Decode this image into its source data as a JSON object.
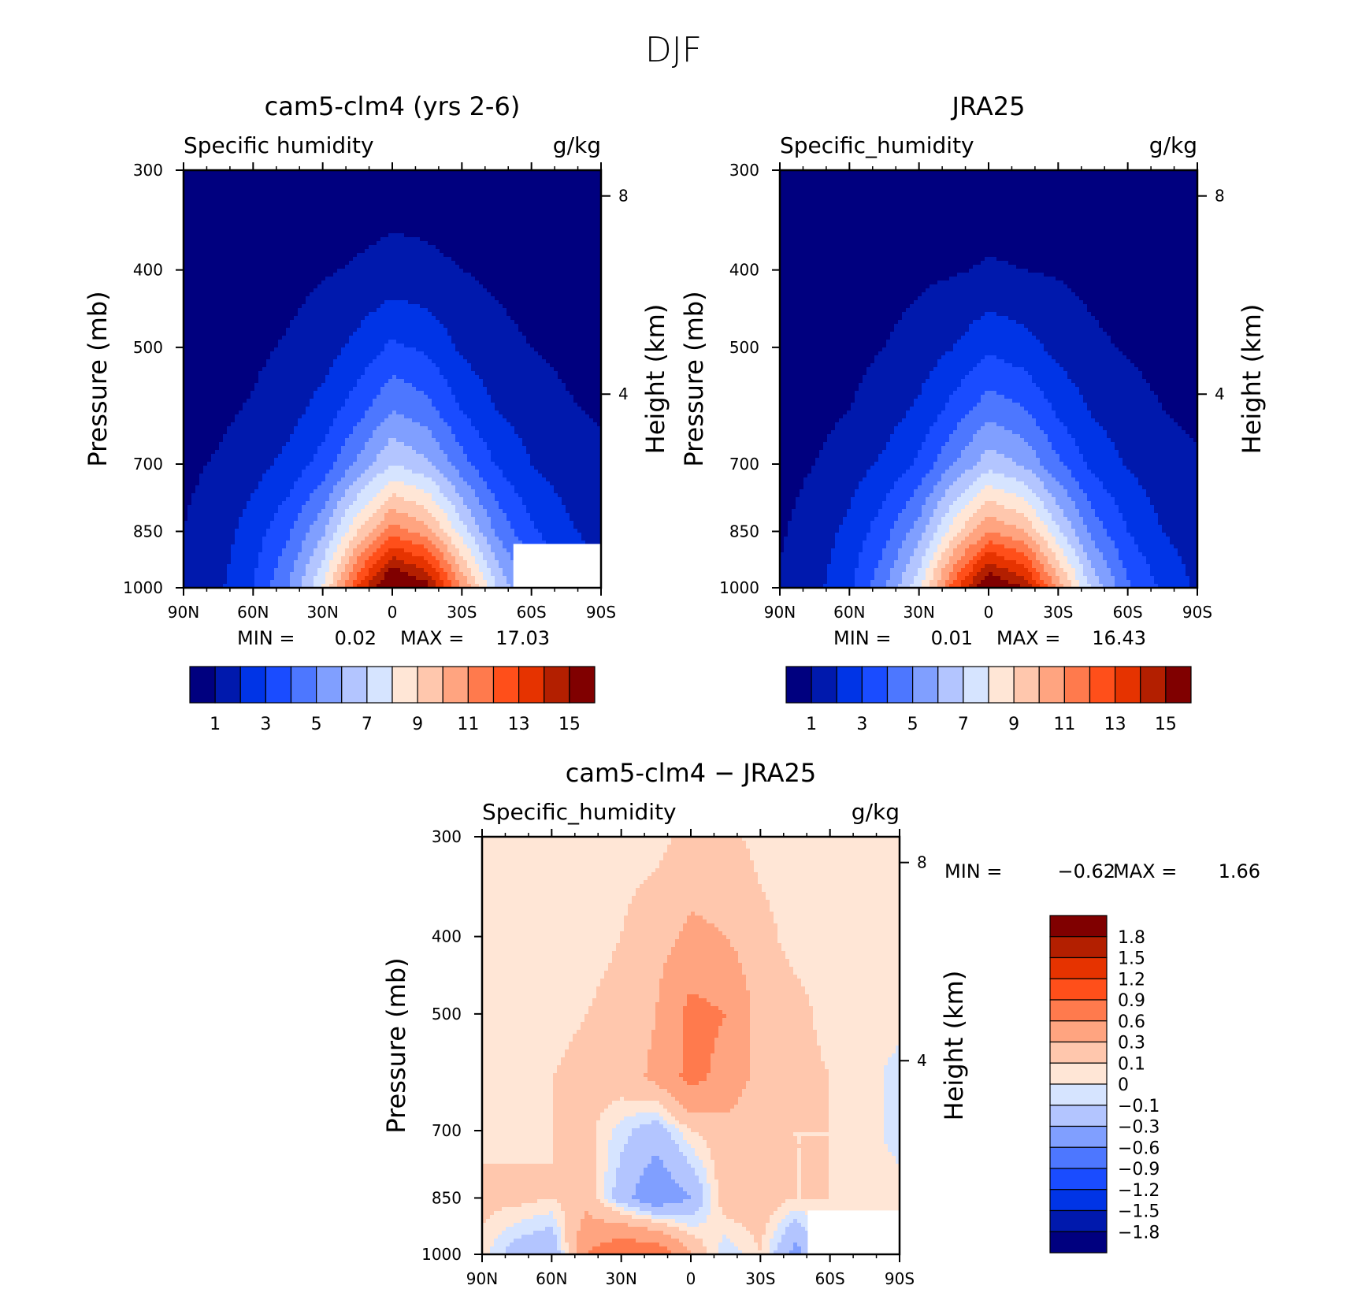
{
  "figure": {
    "title": "DJF"
  },
  "colors": {
    "abs_levels": [
      "#00007f",
      "#0019ad",
      "#0034e6",
      "#1a4cff",
      "#4d77ff",
      "#809fff",
      "#b3c5ff",
      "#d6e4ff",
      "#ffe6d6",
      "#ffc7ad",
      "#ffa480",
      "#ff7a4d",
      "#ff4f1a",
      "#e63300",
      "#b31f00",
      "#800000"
    ],
    "diff_levels": [
      "#00007f",
      "#0019ad",
      "#0034e6",
      "#1a4cff",
      "#4d77ff",
      "#809fff",
      "#b3c5ff",
      "#d6e4ff",
      "#ffe6d6",
      "#ffc7ad",
      "#ffa480",
      "#ff7a4d",
      "#ff4f1a",
      "#e63300",
      "#b31f00",
      "#800000"
    ]
  },
  "chart_data": [
    {
      "type": "contour",
      "title": "cam5-clm4 (yrs 2-6)",
      "left_label": "Specific humidity",
      "right_label": "g/kg",
      "ylabel": "Pressure (mb)",
      "y2label": "Height (km)",
      "x_ticks": [
        "90N",
        "60N",
        "30N",
        "0",
        "30S",
        "60S",
        "90S"
      ],
      "y_ticks": [
        "300",
        "400",
        "500",
        "700",
        "850",
        "1000"
      ],
      "y2_ticks": [
        "8",
        "4"
      ],
      "x": [
        90,
        75,
        60,
        45,
        30,
        15,
        0,
        -15,
        -30,
        -45,
        -60,
        -75,
        -90
      ],
      "min_label": "MIN =",
      "min_value": "0.02",
      "max_label": "MAX =",
      "max_value": "17.03",
      "colorbar_labels": [
        "1",
        "3",
        "5",
        "7",
        "9",
        "11",
        "13",
        "15"
      ],
      "field": [
        {
          "p": 300,
          "q": [
            0.3,
            0.3,
            0.3,
            0.3,
            0.4,
            0.4,
            0.5,
            0.5,
            0.4,
            0.3,
            0.3,
            0.2,
            0.2
          ]
        },
        {
          "p": 400,
          "q": [
            0.3,
            0.4,
            0.5,
            0.7,
            0.9,
            1.1,
            1.3,
            1.2,
            1.0,
            0.8,
            0.6,
            0.4,
            0.3
          ]
        },
        {
          "p": 500,
          "q": [
            0.5,
            0.6,
            0.8,
            1.1,
            1.5,
            2.3,
            3.2,
            2.8,
            1.8,
            1.3,
            1.0,
            0.8,
            0.6
          ]
        },
        {
          "p": 600,
          "q": [
            0.6,
            0.8,
            1.1,
            1.6,
            2.4,
            3.6,
            5.0,
            4.4,
            3.0,
            2.0,
            1.5,
            1.1,
            0.9
          ]
        },
        {
          "p": 700,
          "q": [
            0.8,
            1.1,
            1.6,
            2.3,
            3.4,
            5.2,
            7.0,
            6.2,
            4.4,
            2.9,
            2.0,
            1.5,
            1.2
          ]
        },
        {
          "p": 850,
          "q": [
            1.0,
            1.5,
            2.5,
            3.8,
            5.8,
            9.0,
            11.5,
            10.5,
            7.5,
            4.8,
            3.2,
            2.2,
            1.6
          ]
        },
        {
          "p": 1000,
          "q": [
            1.2,
            1.8,
            3.0,
            5.0,
            8.0,
            13.0,
            17.0,
            15.5,
            11.0,
            7.0,
            4.5,
            3.0,
            2.0
          ]
        }
      ]
    },
    {
      "type": "contour",
      "title": "JRA25",
      "left_label": "Specific_humidity",
      "right_label": "g/kg",
      "ylabel": "Pressure (mb)",
      "y2label": "Height (km)",
      "x_ticks": [
        "90N",
        "60N",
        "30N",
        "0",
        "30S",
        "60S",
        "90S"
      ],
      "y_ticks": [
        "300",
        "400",
        "500",
        "700",
        "850",
        "1000"
      ],
      "y2_ticks": [
        "8",
        "4"
      ],
      "x": [
        90,
        75,
        60,
        45,
        30,
        15,
        0,
        -15,
        -30,
        -45,
        -60,
        -75,
        -90
      ],
      "min_label": "MIN =",
      "min_value": "0.01",
      "max_label": "MAX =",
      "max_value": "16.43",
      "colorbar_labels": [
        "1",
        "3",
        "5",
        "7",
        "9",
        "11",
        "13",
        "15"
      ],
      "field": [
        {
          "p": 300,
          "q": [
            0.2,
            0.2,
            0.2,
            0.3,
            0.3,
            0.4,
            0.4,
            0.4,
            0.3,
            0.3,
            0.2,
            0.2,
            0.2
          ]
        },
        {
          "p": 400,
          "q": [
            0.3,
            0.3,
            0.4,
            0.6,
            0.8,
            0.9,
            1.1,
            1.0,
            0.9,
            0.7,
            0.5,
            0.4,
            0.3
          ]
        },
        {
          "p": 500,
          "q": [
            0.4,
            0.5,
            0.7,
            1.0,
            1.4,
            2.0,
            2.8,
            2.4,
            1.7,
            1.2,
            0.9,
            0.7,
            0.5
          ]
        },
        {
          "p": 600,
          "q": [
            0.5,
            0.7,
            1.0,
            1.5,
            2.2,
            3.4,
            4.6,
            4.1,
            2.8,
            1.9,
            1.4,
            1.0,
            0.8
          ]
        },
        {
          "p": 700,
          "q": [
            0.7,
            1.0,
            1.5,
            2.2,
            3.2,
            5.0,
            6.6,
            5.9,
            4.2,
            2.7,
            1.9,
            1.4,
            1.1
          ]
        },
        {
          "p": 850,
          "q": [
            0.9,
            1.4,
            2.3,
            3.6,
            5.5,
            8.6,
            11.0,
            10.1,
            7.2,
            4.6,
            3.0,
            2.0,
            1.5
          ]
        },
        {
          "p": 1000,
          "q": [
            1.1,
            1.7,
            2.8,
            4.8,
            7.8,
            12.5,
            16.4,
            15.0,
            10.6,
            6.7,
            4.2,
            2.8,
            1.8
          ]
        }
      ]
    },
    {
      "type": "contour",
      "title": "cam5-clm4 − JRA25",
      "left_label": "Specific_humidity",
      "right_label": "g/kg",
      "ylabel": "Pressure (mb)",
      "y2label": "Height (km)",
      "x_ticks": [
        "90N",
        "60N",
        "30N",
        "0",
        "30S",
        "60S",
        "90S"
      ],
      "y_ticks": [
        "300",
        "400",
        "500",
        "700",
        "850",
        "1000"
      ],
      "y2_ticks": [
        "8",
        "4"
      ],
      "x": [
        90,
        75,
        60,
        45,
        30,
        15,
        0,
        -15,
        -30,
        -45,
        -60,
        -75,
        -90
      ],
      "min_label": "MIN =",
      "min_value": "−0.62",
      "max_label": "MAX =",
      "max_value": "1.66",
      "colorbar_labels": [
        "1.8",
        "1.5",
        "1.2",
        "0.9",
        "0.6",
        "0.3",
        "0.1",
        "0",
        "−0.1",
        "−0.3",
        "−0.6",
        "−0.9",
        "−1.2",
        "−1.5",
        "−1.8"
      ],
      "field": [
        {
          "p": 300,
          "q": [
            0.05,
            0.05,
            0.05,
            0.05,
            0.05,
            0.05,
            0.15,
            0.15,
            0.05,
            0.05,
            0.05,
            0.05,
            0.05
          ]
        },
        {
          "p": 400,
          "q": [
            0.05,
            0.05,
            0.05,
            0.05,
            0.1,
            0.2,
            0.35,
            0.3,
            0.15,
            0.05,
            0.05,
            0.05,
            0.05
          ]
        },
        {
          "p": 500,
          "q": [
            0.05,
            0.05,
            0.05,
            0.1,
            0.15,
            0.3,
            0.7,
            0.6,
            0.2,
            0.15,
            0.05,
            0.05,
            0.05
          ]
        },
        {
          "p": 600,
          "q": [
            0.05,
            0.05,
            0.1,
            0.15,
            0.2,
            0.35,
            0.7,
            0.5,
            0.2,
            0.15,
            0.1,
            0.05,
            -0.05
          ]
        },
        {
          "p": 700,
          "q": [
            0.05,
            0.05,
            0.1,
            0.15,
            -0.05,
            -0.2,
            0.1,
            0.2,
            0.15,
            0.1,
            0.1,
            0.05,
            -0.05
          ]
        },
        {
          "p": 850,
          "q": [
            0.15,
            0.15,
            0.1,
            0.2,
            -0.2,
            -0.5,
            -0.3,
            0.2,
            0.2,
            0.1,
            0.1,
            0.05,
            0.05
          ]
        },
        {
          "p": 1000,
          "q": [
            0.05,
            -0.2,
            -0.3,
            0.6,
            0.9,
            0.9,
            0.3,
            -0.1,
            0.1,
            -0.4,
            0.05,
            0.05,
            0.05
          ]
        }
      ]
    }
  ]
}
